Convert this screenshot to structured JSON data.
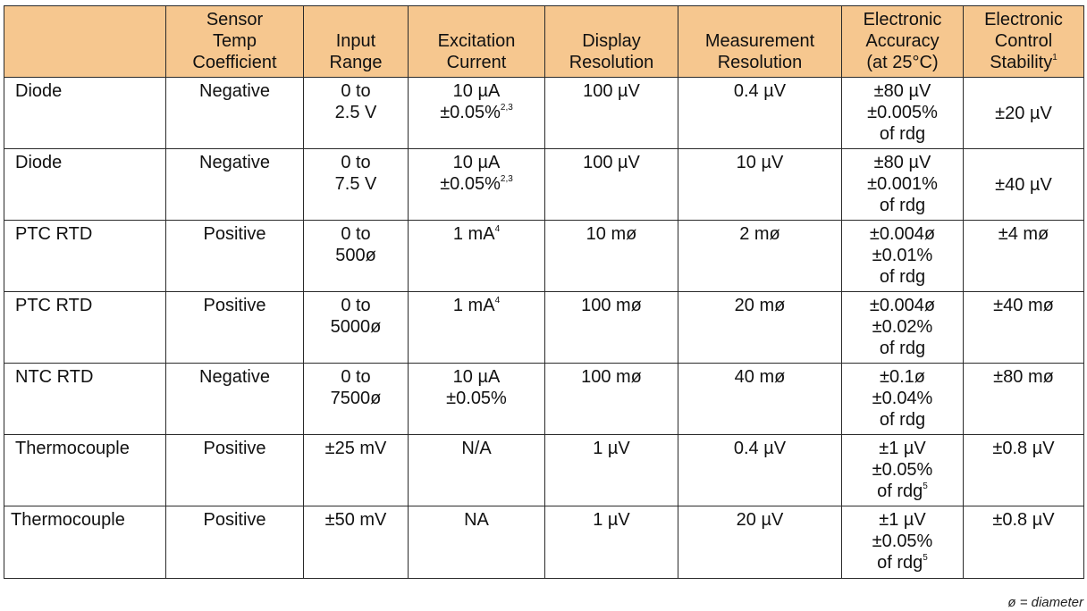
{
  "header": {
    "sensor_type": [],
    "temp_coefficient": [
      "Sensor",
      "Temp",
      "Coefficient"
    ],
    "input_range": [
      "Input",
      "Range"
    ],
    "excitation_current": [
      "Excitation",
      "Current"
    ],
    "display_resolution": [
      "Display",
      "Resolution"
    ],
    "measurement_resolution": [
      "Measurement",
      "Resolution"
    ],
    "electronic_accuracy": [
      "Electronic",
      "Accuracy",
      "(at 25°C)"
    ],
    "control_stability": [
      "Electronic",
      "Control",
      "Stability"
    ],
    "control_stability_note": "1"
  },
  "rows": [
    {
      "sensor": "Diode",
      "coefficient": "Negative",
      "range": [
        "0 to",
        "2.5 V"
      ],
      "excitation": [
        "10 µA",
        "±0.05%"
      ],
      "excitation_note": "2,3",
      "display_res": "100 µV",
      "meas_res": "0.4 µV",
      "accuracy": [
        "±80 µV",
        "±0.005%",
        "of rdg"
      ],
      "accuracy_note": "",
      "stability": "±20 µV"
    },
    {
      "sensor": "Diode",
      "coefficient": "Negative",
      "range": [
        "0 to",
        "7.5 V"
      ],
      "excitation": [
        "10 µA",
        "±0.05%"
      ],
      "excitation_note": "2,3",
      "display_res": "100 µV",
      "meas_res": "10 µV",
      "accuracy": [
        "±80 µV",
        "±0.001%",
        "of rdg"
      ],
      "accuracy_note": "",
      "stability": "±40 µV"
    },
    {
      "sensor": "PTC RTD",
      "coefficient": "Positive",
      "range": [
        "0 to",
        "500ø"
      ],
      "excitation": [
        "1 mA"
      ],
      "excitation_note": "4",
      "display_res": "10 mø",
      "meas_res": "2 mø",
      "accuracy": [
        "±0.004ø",
        "±0.01%",
        "of rdg"
      ],
      "accuracy_note": "",
      "stability": "±4 mø"
    },
    {
      "sensor": "PTC RTD",
      "coefficient": "Positive",
      "range": [
        "0 to",
        "5000ø"
      ],
      "excitation": [
        "1 mA"
      ],
      "excitation_note": "4",
      "display_res": "100 mø",
      "meas_res": "20 mø",
      "accuracy": [
        "±0.004ø",
        "±0.02%",
        "of rdg"
      ],
      "accuracy_note": "",
      "stability": "±40 mø"
    },
    {
      "sensor": "NTC RTD",
      "coefficient": "Negative",
      "range": [
        "0 to",
        "7500ø"
      ],
      "excitation": [
        "10 µA",
        "±0.05%"
      ],
      "excitation_note": "",
      "display_res": "100 mø",
      "meas_res": "40 mø",
      "accuracy": [
        "±0.1ø",
        "±0.04%",
        "of rdg"
      ],
      "accuracy_note": "",
      "stability": "±80 mø"
    },
    {
      "sensor": "Thermocouple",
      "coefficient": "Positive",
      "range": [
        "±25 mV"
      ],
      "excitation": [
        "N/A"
      ],
      "excitation_note": "",
      "display_res": "1 µV",
      "meas_res": "0.4 µV",
      "accuracy": [
        "±1 µV",
        "±0.05%",
        "of rdg"
      ],
      "accuracy_note": "5",
      "stability": "±0.8 µV"
    },
    {
      "sensor": "Thermocouple",
      "coefficient": "Positive",
      "range": [
        "±50 mV"
      ],
      "excitation": [
        "NA"
      ],
      "excitation_note": "",
      "display_res": "1 µV",
      "meas_res": "20 µV",
      "accuracy": [
        "±1 µV",
        "±0.05%",
        "of rdg"
      ],
      "accuracy_note": "5",
      "stability": "±0.8 µV"
    }
  ],
  "footnote": "ø = diameter",
  "colors": {
    "header_bg": "#f6c78f",
    "border": "#2a2a2a"
  }
}
